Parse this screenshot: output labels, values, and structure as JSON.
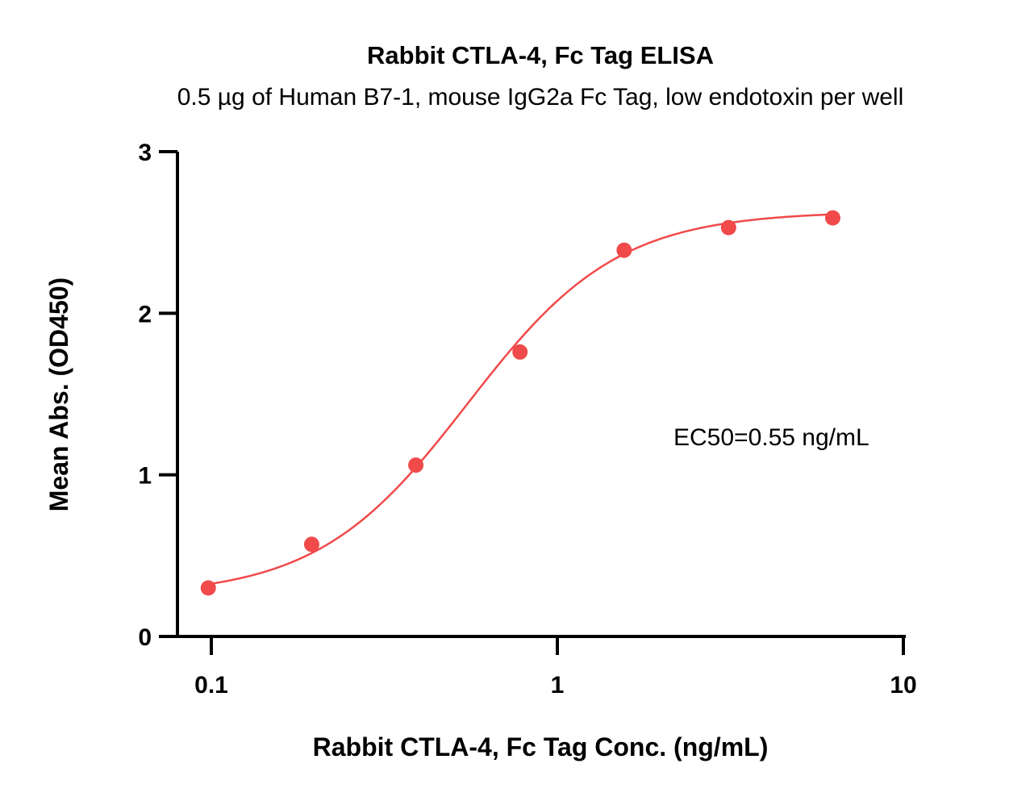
{
  "chart_data": {
    "type": "scatter",
    "title": "Rabbit CTLA-4, Fc Tag ELISA",
    "subtitle": "0.5 µg of Human B7-1, mouse IgG2a Fc Tag, low endotoxin per well",
    "xlabel": "Rabbit CTLA-4, Fc Tag Conc. (ng/mL)",
    "ylabel": "Mean Abs. (OD450)",
    "x_scale": "log",
    "xlim": [
      0.08,
      10
    ],
    "ylim": [
      0,
      3
    ],
    "x_ticks": [
      {
        "value": 0.1,
        "label": "0.1"
      },
      {
        "value": 1,
        "label": "1"
      },
      {
        "value": 10,
        "label": "10"
      }
    ],
    "y_ticks": [
      {
        "value": 0,
        "label": "0"
      },
      {
        "value": 1,
        "label": "1"
      },
      {
        "value": 2,
        "label": "2"
      },
      {
        "value": 3,
        "label": "3"
      }
    ],
    "grid": false,
    "color": "#f04a4a",
    "series": [
      {
        "x": [
          0.098,
          0.195,
          0.39,
          0.78,
          1.56,
          3.125,
          6.25
        ],
        "y": [
          0.3,
          0.57,
          1.06,
          1.76,
          2.39,
          2.53,
          2.59
        ]
      }
    ],
    "fit": {
      "model": "4PL",
      "bottom": 0.25,
      "top": 2.63,
      "ec50": 0.55,
      "hill": 2.0
    },
    "annotations": [
      {
        "text": "EC50=0.55 ng/mL"
      }
    ]
  }
}
